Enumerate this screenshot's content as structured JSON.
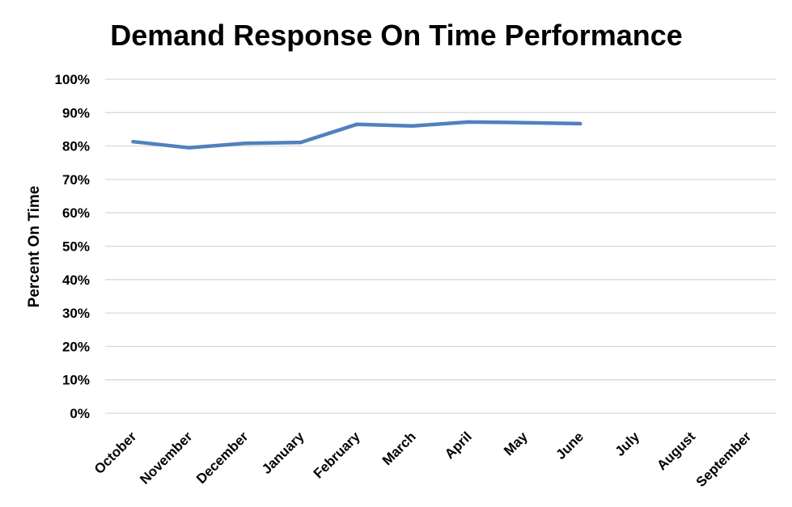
{
  "chart_data": {
    "type": "line",
    "title": "Demand Response On Time Performance",
    "xlabel": "",
    "ylabel": "Percent On Time",
    "categories": [
      "October",
      "November",
      "December",
      "January",
      "February",
      "March",
      "April",
      "May",
      "June",
      "July",
      "August",
      "September"
    ],
    "y_tick_labels": [
      "0%",
      "10%",
      "20%",
      "30%",
      "40%",
      "50%",
      "60%",
      "70%",
      "80%",
      "90%",
      "100%"
    ],
    "ylim": [
      0,
      1
    ],
    "y_tick_step": 0.1,
    "grid": true,
    "legend": "none",
    "series": [
      {
        "values": [
          0.813,
          0.795,
          0.808,
          0.811,
          0.865,
          0.86,
          0.872,
          0.87,
          0.867,
          null,
          null,
          null
        ],
        "color": "#4f81bd"
      }
    ]
  }
}
